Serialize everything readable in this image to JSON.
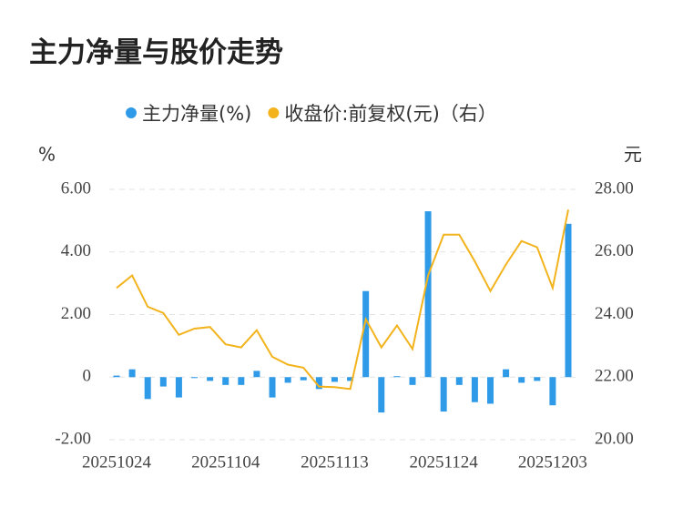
{
  "chart_data": {
    "type": "bar-line",
    "title": "主力净量与股价走势",
    "y_unit": "%",
    "y2_unit": "元",
    "categories": [
      "20251024",
      null,
      null,
      null,
      null,
      null,
      null,
      "20251104",
      null,
      null,
      null,
      null,
      null,
      null,
      "20251113",
      null,
      null,
      null,
      null,
      null,
      null,
      "20251124",
      null,
      null,
      null,
      null,
      null,
      null,
      "20251203",
      null
    ],
    "series": [
      {
        "name": "主力净量(%)",
        "type": "bar",
        "color": "#2f9be8",
        "values": [
          0.05,
          0.25,
          -0.7,
          -0.3,
          -0.65,
          -0.03,
          -0.12,
          -0.25,
          -0.25,
          0.2,
          -0.65,
          -0.18,
          -0.1,
          -0.38,
          -0.15,
          -0.12,
          2.75,
          -1.13,
          0.03,
          -0.25,
          5.3,
          -1.1,
          -0.25,
          -0.8,
          -0.85,
          0.25,
          -0.18,
          -0.12,
          -0.9,
          4.9
        ]
      },
      {
        "name": "收盘价:前复权(元)（右）",
        "type": "line",
        "axis": "y2",
        "color": "#f2b31c",
        "values": [
          24.85,
          25.25,
          24.25,
          24.05,
          23.35,
          23.55,
          23.6,
          23.05,
          22.95,
          23.5,
          22.65,
          22.4,
          22.3,
          21.7,
          21.68,
          21.62,
          23.85,
          22.95,
          23.65,
          22.9,
          25.25,
          26.55,
          26.55,
          25.7,
          24.75,
          25.6,
          26.35,
          26.15,
          24.85,
          27.35
        ]
      }
    ],
    "ylim": [
      -2,
      6
    ],
    "yticks": [
      {
        "value": 6,
        "label": "6.00"
      },
      {
        "value": 4,
        "label": "4.00"
      },
      {
        "value": 2,
        "label": "2.00"
      },
      0,
      {
        "value": -2,
        "label": "-2.00"
      }
    ],
    "y2lim": [
      20,
      28
    ],
    "y2ticks": [
      {
        "value": 28,
        "label": "28.00"
      },
      {
        "value": 26,
        "label": "26.00"
      },
      {
        "value": 24,
        "label": "24.00"
      },
      {
        "value": 22,
        "label": "22.00"
      },
      {
        "value": 20,
        "label": "20.00"
      }
    ],
    "grid": true
  }
}
